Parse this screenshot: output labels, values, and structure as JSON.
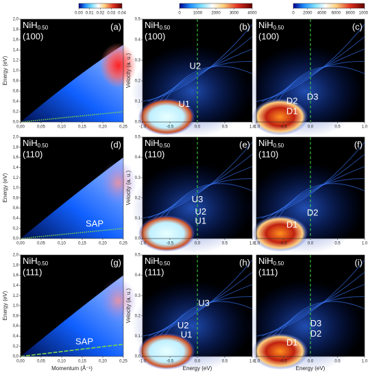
{
  "chart_data": [
    {
      "type": "heatmap",
      "title": "NiH",
      "title_sub": "0.50",
      "subtitle": "(100)",
      "label": "(a)",
      "annotations": [],
      "ylabel": "Energy (eV)",
      "colorbar": {
        "lim": [
          0,
          0.04
        ],
        "ticks": [
          {
            "value": 0,
            "label": "0.00"
          },
          0.01,
          0.02,
          0.03,
          0.04
        ]
      },
      "xlim": [
        0,
        0.25
      ],
      "xticks": [
        {
          "value": 0,
          "label": "0,00"
        },
        {
          "value": 0.05,
          "label": "0,05"
        },
        {
          "value": 0.1,
          "label": "0,10"
        },
        {
          "value": 0.15,
          "label": "0,15"
        },
        {
          "value": 0.2,
          "label": "0,20"
        },
        {
          "value": 0.25,
          "label": "0,25"
        }
      ],
      "ylim": [
        0,
        2
      ],
      "yticks": [
        {
          "value": 0,
          "label": "0,0"
        },
        {
          "value": 0.2,
          "label": "0,2"
        },
        {
          "value": 0.4,
          "label": "0,4"
        },
        {
          "value": 0.6,
          "label": "0,6"
        },
        {
          "value": 0.8,
          "label": "0,8"
        },
        {
          "value": 1,
          "label": "1,0"
        },
        {
          "value": 1.2,
          "label": "1,2"
        },
        {
          "value": 1.4,
          "label": "1,4"
        },
        {
          "value": 1.6,
          "label": "1,6"
        },
        {
          "value": 1.8,
          "label": "1,8"
        },
        {
          "value": 2,
          "label": "2,0"
        }
      ]
    },
    {
      "type": "heatmap",
      "title": "NiH",
      "title_sub": "0.50",
      "subtitle": "(100)",
      "label": "(b)",
      "annotations": [
        "U2",
        "U1"
      ],
      "ylabel": "Velocity (a. u.)",
      "colorbar": {
        "lim": [
          0,
          4000
        ],
        "ticks": [
          0,
          1000,
          2000,
          3000,
          4000
        ]
      },
      "xlim": [
        -1,
        1
      ],
      "xticks": [
        {
          "value": -1,
          "label": "-1.0"
        },
        -0.5,
        {
          "value": 0,
          "label": "0.0"
        },
        0.5,
        {
          "value": 1,
          "label": "1.0"
        }
      ],
      "ylim": [
        0,
        0.5
      ],
      "yticks": [
        {
          "value": 0,
          "label": "0.0"
        },
        0.1,
        0.2,
        0.3,
        0.4,
        0.5
      ]
    },
    {
      "type": "heatmap",
      "title": "NiH",
      "title_sub": "0.50",
      "subtitle": "(100)",
      "label": "(c)",
      "annotations": [
        "D2",
        "D3",
        "D1"
      ],
      "colorbar": {
        "lim": [
          0,
          10000
        ],
        "ticks": [
          0,
          2000,
          4000,
          6000,
          8000,
          10000
        ]
      },
      "xlim": [
        -1,
        1
      ],
      "xticks": [
        {
          "value": -1,
          "label": "-1.0"
        },
        -0.5,
        {
          "value": 0,
          "label": "0.0"
        },
        0.5,
        {
          "value": 1,
          "label": "1.0"
        }
      ],
      "ylim": [
        0,
        0.5
      ]
    },
    {
      "type": "heatmap",
      "title": "NiH",
      "title_sub": "0.50",
      "subtitle": "(110)",
      "label": "(d)",
      "annotations": [
        "SAP"
      ],
      "ylabel": "Energy (eV)",
      "xlim": [
        0,
        0.25
      ],
      "xticks": [
        {
          "value": 0,
          "label": "0,00"
        },
        {
          "value": 0.05,
          "label": "0,05"
        },
        {
          "value": 0.1,
          "label": "0,10"
        },
        {
          "value": 0.15,
          "label": "0,15"
        },
        {
          "value": 0.2,
          "label": "0,20"
        },
        {
          "value": 0.25,
          "label": "0,25"
        }
      ],
      "ylim": [
        0,
        2
      ],
      "yticks": [
        {
          "value": 0,
          "label": "0,0"
        },
        {
          "value": 0.2,
          "label": "0,2"
        },
        {
          "value": 0.4,
          "label": "0,4"
        },
        {
          "value": 0.6,
          "label": "0,6"
        },
        {
          "value": 0.8,
          "label": "0,8"
        },
        {
          "value": 1,
          "label": "1,0"
        },
        {
          "value": 1.2,
          "label": "1,2"
        },
        {
          "value": 1.4,
          "label": "1,4"
        },
        {
          "value": 1.6,
          "label": "1,6"
        },
        {
          "value": 1.8,
          "label": "1,8"
        },
        {
          "value": 2,
          "label": "2,0"
        }
      ]
    },
    {
      "type": "heatmap",
      "title": "NiH",
      "title_sub": "0.50",
      "subtitle": "(110)",
      "label": "(e)",
      "annotations": [
        "U3",
        "U2",
        "U1"
      ],
      "ylabel": "Velocity (a. u.)",
      "xlim": [
        -1,
        1
      ],
      "xticks": [
        {
          "value": -1,
          "label": "-1.0"
        },
        -0.5,
        {
          "value": 0,
          "label": "0.0"
        },
        0.5,
        {
          "value": 1,
          "label": "1.0"
        }
      ],
      "ylim": [
        0,
        0.5
      ],
      "yticks": [
        {
          "value": 0,
          "label": "0.0"
        },
        0.1,
        0.2,
        0.3,
        0.4,
        0.5
      ]
    },
    {
      "type": "heatmap",
      "title": "NiH",
      "title_sub": "0.50",
      "subtitle": "(110)",
      "label": "(f)",
      "annotations": [
        "D2",
        "D1"
      ],
      "xlim": [
        -1,
        1
      ],
      "xticks": [
        {
          "value": -1,
          "label": "-1.0"
        },
        -0.5,
        {
          "value": 0,
          "label": "0.0"
        },
        0.5,
        {
          "value": 1,
          "label": "1.0"
        }
      ],
      "ylim": [
        0,
        0.5
      ]
    },
    {
      "type": "heatmap",
      "title": "NiH",
      "title_sub": "0.50",
      "subtitle": "(111)",
      "label": "(g)",
      "annotations": [
        "SAP"
      ],
      "ylabel": "Energy (eV)",
      "xlabel": "Momentum (Å⁻¹)",
      "xlim": [
        0,
        0.25
      ],
      "xticks": [
        {
          "value": 0,
          "label": "0,00"
        },
        {
          "value": 0.05,
          "label": "0,05"
        },
        {
          "value": 0.1,
          "label": "0,10"
        },
        {
          "value": 0.15,
          "label": "0,15"
        },
        {
          "value": 0.2,
          "label": "0,20"
        },
        {
          "value": 0.25,
          "label": "0,25"
        }
      ],
      "ylim": [
        0,
        2
      ],
      "yticks": [
        {
          "value": 0,
          "label": "0,0"
        },
        {
          "value": 0.2,
          "label": "0,2"
        },
        {
          "value": 0.4,
          "label": "0,4"
        },
        {
          "value": 0.6,
          "label": "0,6"
        },
        {
          "value": 0.8,
          "label": "0,8"
        },
        {
          "value": 1,
          "label": "1,0"
        },
        {
          "value": 1.2,
          "label": "1,2"
        },
        {
          "value": 1.4,
          "label": "1,4"
        },
        {
          "value": 1.6,
          "label": "1,6"
        },
        {
          "value": 1.8,
          "label": "1,8"
        },
        {
          "value": 2,
          "label": "2,0"
        }
      ]
    },
    {
      "type": "heatmap",
      "title": "NiH",
      "title_sub": "0.50",
      "subtitle": "(111)",
      "label": "(h)",
      "annotations": [
        "U3",
        "U2",
        "U1"
      ],
      "ylabel": "Velocity (a. u.)",
      "xlabel": "Energy (eV)",
      "xlim": [
        -1,
        1
      ],
      "xticks": [
        {
          "value": -1,
          "label": "-1.0"
        },
        -0.5,
        {
          "value": 0,
          "label": "0.0"
        },
        0.5,
        {
          "value": 1,
          "label": "1.0"
        }
      ],
      "ylim": [
        0,
        0.5
      ],
      "yticks": [
        {
          "value": 0,
          "label": "0.0"
        },
        0.1,
        0.2,
        0.3,
        0.4,
        0.5
      ]
    },
    {
      "type": "heatmap",
      "title": "NiH",
      "title_sub": "0.50",
      "subtitle": "(111)",
      "label": "(i)",
      "annotations": [
        "D3",
        "D2",
        "D1"
      ],
      "xlabel": "Energy (eV)",
      "xlim": [
        -1,
        1
      ],
      "xticks": [
        {
          "value": -1,
          "label": "-1.0"
        },
        -0.5,
        {
          "value": 0,
          "label": "0.0"
        },
        0.5,
        {
          "value": 1,
          "label": "1.0"
        }
      ],
      "ylim": [
        0,
        0.5
      ]
    }
  ]
}
